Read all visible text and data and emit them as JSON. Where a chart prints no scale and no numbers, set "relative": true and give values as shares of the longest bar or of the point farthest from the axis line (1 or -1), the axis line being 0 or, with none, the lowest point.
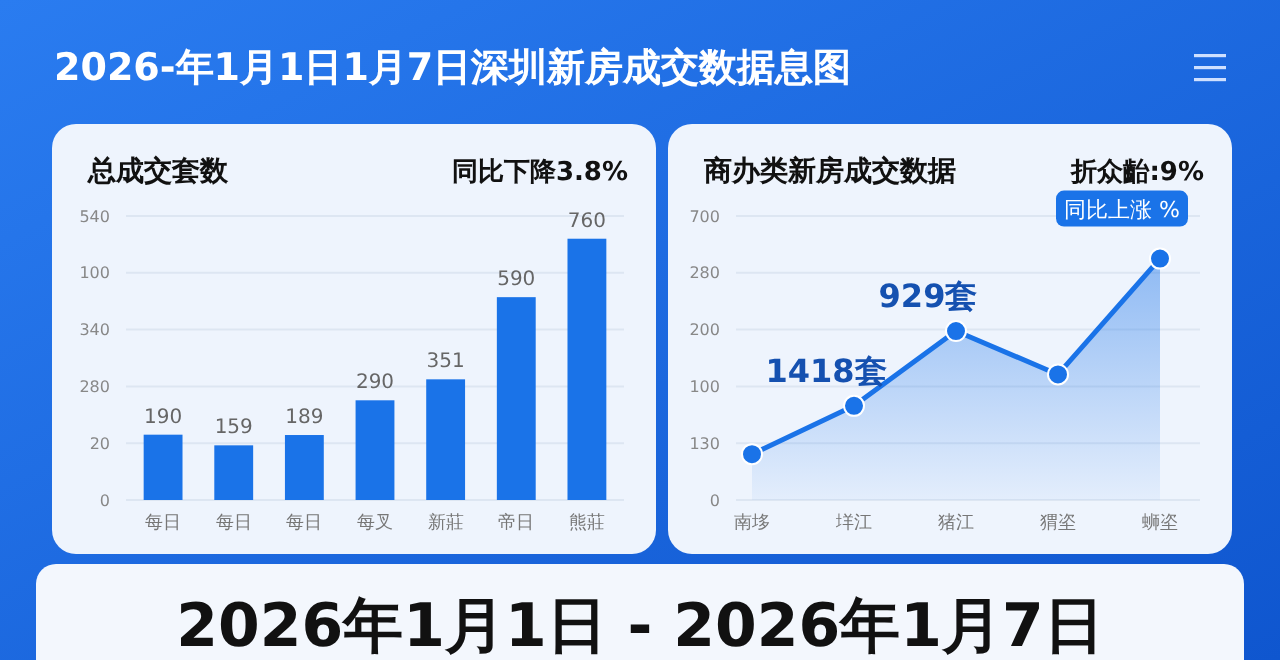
{
  "chart_data": [
    {
      "type": "bar",
      "title": "总成交套数",
      "subtitle": "同比下降3.8%",
      "annotations": [
        "2026-年1月1日1月7日深圳新房成交数据息图",
        "2026年1月1日 - 2026年1月7日",
        "0",
        "20",
        "280",
        "340",
        "100",
        "540"
      ],
      "categories": [
        "每日",
        "每日",
        "每日",
        "每叉",
        "新莊",
        "帝日",
        "熊莊"
      ],
      "values": [
        190,
        159,
        189,
        290,
        351,
        590,
        760
      ],
      "color": "#1a73e8",
      "data_labels": true,
      "grid": "y"
    },
    {
      "type": "area",
      "title": "商办类新房成交数据",
      "subtitle": "折众齝:9%",
      "relative": true,
      "categories": [
        "南垑",
        "垟江",
        "猪江",
        "猬垐",
        "蛳垐"
      ],
      "series": [
        {
          "color": "#1a73e8",
          "values": [
            0.19,
            0.39,
            0.7,
            0.52,
            1
          ]
        }
      ],
      "marker": "circle",
      "annotations": [
        {
          "text": "1418套",
          "x": "垟江",
          "y": 0.39
        },
        {
          "text": "929套",
          "x": "猪江",
          "y": 0.7
        },
        {
          "text": "同比上涨 %",
          "x": "蛳垐",
          "y": 1
        },
        "0",
        "130",
        "100",
        "200",
        "280",
        "700"
      ],
      "grid": "y"
    }
  ]
}
